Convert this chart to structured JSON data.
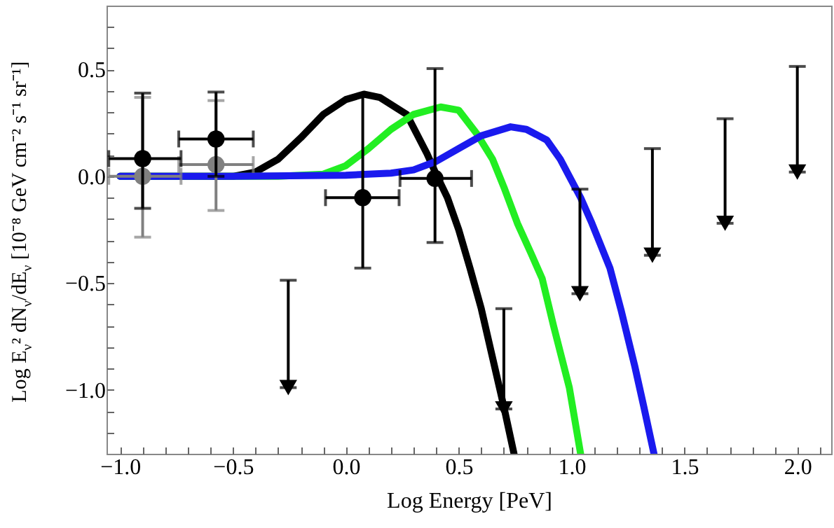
{
  "chart_data": {
    "type": "line",
    "xlabel": "Log Energy [PeV]",
    "ylabel": "Log E$_{ν}$² dN$_{ν}$/dE$_{ν}$ [10⁻⁸ GeV cm⁻² s⁻¹ sr⁻¹]",
    "xlim": [
      -1.06,
      2.15
    ],
    "ylim": [
      -1.3,
      0.8
    ],
    "xticks": [
      {
        "value": -1.0,
        "label": "−1.0"
      },
      {
        "value": -0.9,
        "label": null
      },
      {
        "value": -0.8,
        "label": null
      },
      {
        "value": -0.7,
        "label": null
      },
      {
        "value": -0.6,
        "label": null
      },
      {
        "value": -0.5,
        "label": "−0.5"
      },
      {
        "value": -0.4,
        "label": null
      },
      {
        "value": -0.3,
        "label": null
      },
      {
        "value": -0.2,
        "label": null
      },
      {
        "value": -0.1,
        "label": null
      },
      {
        "value": 0,
        "label": "0.0"
      },
      {
        "value": 0.1,
        "label": null
      },
      {
        "value": 0.2,
        "label": null
      },
      {
        "value": 0.3,
        "label": null
      },
      {
        "value": 0.4,
        "label": null
      },
      {
        "value": 0.5,
        "label": "0.5"
      },
      {
        "value": 0.6,
        "label": null
      },
      {
        "value": 0.7,
        "label": null
      },
      {
        "value": 0.8,
        "label": null
      },
      {
        "value": 0.9,
        "label": null
      },
      {
        "value": 1.0,
        "label": "1.0"
      },
      {
        "value": 1.1,
        "label": null
      },
      {
        "value": 1.2,
        "label": null
      },
      {
        "value": 1.3,
        "label": null
      },
      {
        "value": 1.4,
        "label": null
      },
      {
        "value": 1.5,
        "label": "1.5"
      },
      {
        "value": 1.6,
        "label": null
      },
      {
        "value": 1.7,
        "label": null
      },
      {
        "value": 1.8,
        "label": null
      },
      {
        "value": 1.9,
        "label": null
      },
      {
        "value": 2.0,
        "label": "2.0"
      },
      {
        "value": 2.1,
        "label": null
      }
    ],
    "yticks": [
      {
        "value": -1.2,
        "label": null
      },
      {
        "value": -1.1,
        "label": null
      },
      {
        "value": -1.0,
        "label": "−1.0"
      },
      {
        "value": -0.9,
        "label": null
      },
      {
        "value": -0.8,
        "label": null
      },
      {
        "value": -0.7,
        "label": null
      },
      {
        "value": -0.6,
        "label": null
      },
      {
        "value": -0.5,
        "label": "−0.5"
      },
      {
        "value": -0.4,
        "label": null
      },
      {
        "value": -0.3,
        "label": null
      },
      {
        "value": -0.2,
        "label": null
      },
      {
        "value": -0.1,
        "label": null
      },
      {
        "value": 0,
        "label": "0.0"
      },
      {
        "value": 0.1,
        "label": null
      },
      {
        "value": 0.2,
        "label": null
      },
      {
        "value": 0.3,
        "label": null
      },
      {
        "value": 0.4,
        "label": null
      },
      {
        "value": 0.5,
        "label": "0.5"
      },
      {
        "value": 0.6,
        "label": null
      },
      {
        "value": 0.7,
        "label": null
      }
    ],
    "grid": false,
    "series": [
      {
        "type": "line",
        "color": "#000000",
        "x": [
          -1.0,
          -0.5,
          -0.4,
          -0.3,
          -0.2,
          -0.1,
          0.0,
          0.08,
          0.15,
          0.27,
          0.36,
          0.4,
          0.45,
          0.5,
          0.55,
          0.6,
          0.65,
          0.7,
          0.745
        ],
        "values": [
          0,
          0,
          0.02,
          0.08,
          0.18,
          0.29,
          0.36,
          0.385,
          0.37,
          0.29,
          0.105,
          0.01,
          -0.1,
          -0.25,
          -0.43,
          -0.62,
          -0.85,
          -1.08,
          -1.3
        ]
      },
      {
        "type": "line",
        "color": "#22ee22",
        "x": [
          -1.0,
          -0.3,
          -0.1,
          0.0,
          0.1,
          0.2,
          0.3,
          0.42,
          0.5,
          0.58,
          0.65,
          0.7,
          0.76,
          0.82,
          0.87,
          0.92,
          0.99,
          1.04
        ],
        "values": [
          0,
          0,
          0.01,
          0.05,
          0.13,
          0.22,
          0.29,
          0.325,
          0.31,
          0.2,
          0.08,
          -0.05,
          -0.22,
          -0.36,
          -0.48,
          -0.7,
          -0.99,
          -1.3
        ]
      },
      {
        "type": "line",
        "color": "#1a1aee",
        "x": [
          -1.0,
          -0.5,
          0.0,
          0.2,
          0.3,
          0.4,
          0.5,
          0.6,
          0.73,
          0.8,
          0.89,
          0.95,
          0.99,
          1.04,
          1.09,
          1.17,
          1.22,
          1.28,
          1.32,
          1.365
        ],
        "values": [
          0,
          0,
          0.005,
          0.015,
          0.03,
          0.07,
          0.13,
          0.19,
          0.232,
          0.22,
          0.17,
          0.08,
          0.0,
          -0.1,
          -0.22,
          -0.43,
          -0.63,
          -0.89,
          -1.08,
          -1.3
        ]
      },
      {
        "type": "scatter",
        "marker": "circle",
        "color": "#808080",
        "x": [
          -0.9,
          -0.575
        ],
        "values": [
          0.0,
          0.055
        ],
        "errors": [
          [
            -0.285,
            0.37
          ],
          [
            -0.16,
            0.355
          ]
        ],
        "xerrors": [
          [
            -1.05,
            -0.73
          ],
          [
            -0.74,
            -0.41
          ]
        ]
      },
      {
        "type": "scatter",
        "marker": "circle",
        "color": "#000000",
        "x": [
          -0.9,
          -0.575,
          0.075,
          0.395
        ],
        "values": [
          0.083,
          0.175,
          -0.1,
          -0.01
        ],
        "errors": [
          [
            -0.15,
            0.39
          ],
          [
            0.0,
            0.395
          ],
          [
            -0.43,
            0.38
          ],
          [
            -0.31,
            0.505
          ]
        ],
        "xerrors": [
          [
            -1.05,
            -0.73
          ],
          [
            -0.74,
            -0.41
          ],
          [
            -0.09,
            0.236
          ],
          [
            0.24,
            0.557
          ]
        ]
      },
      {
        "type": "scatter",
        "marker": "triangle",
        "color": "#000000",
        "x": [
          -0.255,
          0.7,
          1.037,
          1.358,
          1.68,
          2.0
        ],
        "values": [
          -0.99,
          -1.09,
          -0.55,
          -0.37,
          -0.22,
          0.02
        ],
        "errors": [
          [
            -0.99,
            -0.487
          ],
          [
            -1.09,
            -0.62
          ],
          [
            -0.55,
            -0.06
          ],
          [
            -0.37,
            0.13
          ],
          [
            -0.22,
            0.27
          ],
          [
            0.02,
            0.515
          ]
        ]
      }
    ]
  }
}
